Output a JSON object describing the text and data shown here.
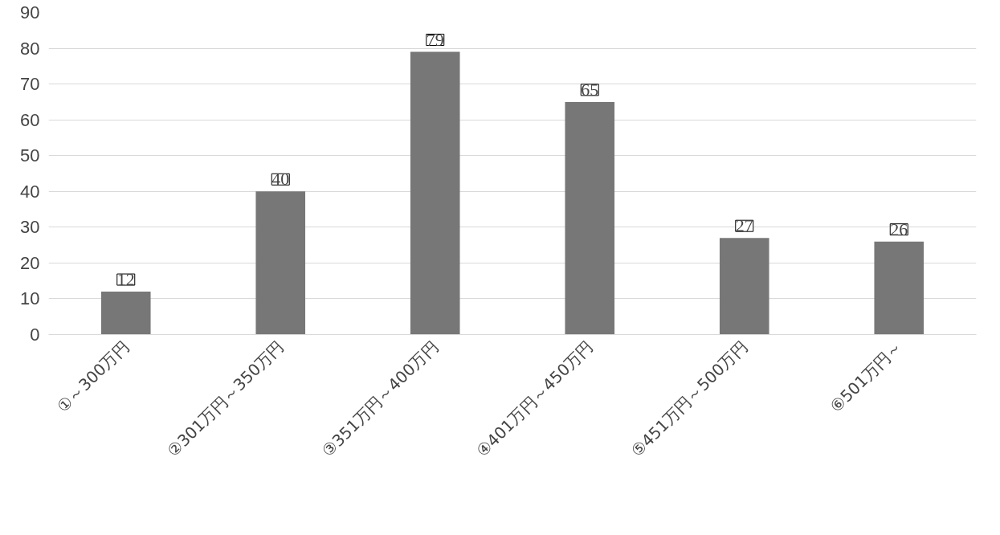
{
  "chart_data": {
    "type": "bar",
    "categories": [
      "①～300万円",
      "②301万円～350万円",
      "③351万円～400万円",
      "④401万円～450万円",
      "⑤451万円～500万円",
      "⑥501万円～"
    ],
    "values": [
      12,
      40,
      79,
      65,
      27,
      26
    ],
    "color": "#777777",
    "ylim": [
      0,
      90
    ],
    "yticks": [
      0,
      10,
      20,
      30,
      40,
      50,
      60,
      70,
      80,
      90
    ],
    "grid": "y",
    "data_labels": true
  }
}
